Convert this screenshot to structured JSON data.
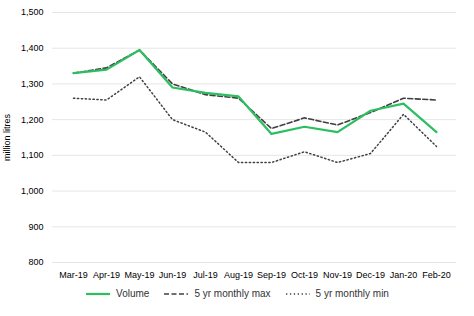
{
  "chart_data": {
    "type": "line",
    "categories": [
      "Mar-19",
      "Apr-19",
      "May-19",
      "Jun-19",
      "Jul-19",
      "Aug-19",
      "Sep-19",
      "Oct-19",
      "Nov-19",
      "Dec-19",
      "Jan-20",
      "Feb-20"
    ],
    "series": [
      {
        "name": "5 yr monthly min",
        "color": "#404040",
        "line_style": "dotted",
        "values": [
          1260,
          1255,
          1320,
          1200,
          1165,
          1080,
          1080,
          1110,
          1080,
          1105,
          1215,
          1125
        ]
      },
      {
        "name": "5 yr monthly max",
        "color": "#404040",
        "line_style": "dashed",
        "values": [
          1330,
          1345,
          1395,
          1300,
          1270,
          1260,
          1175,
          1205,
          1185,
          1220,
          1260,
          1255
        ]
      },
      {
        "name": "Volume",
        "color": "#2dbe60",
        "line_style": "solid",
        "values": [
          1330,
          1340,
          1395,
          1290,
          1275,
          1265,
          1160,
          1180,
          1165,
          1225,
          1245,
          1165
        ]
      }
    ],
    "ylabel": "million litres",
    "ylim": [
      800,
      1500
    ],
    "yticks": [
      800,
      900,
      {
        "value": 1000,
        "label": "1,000"
      },
      {
        "value": 1100,
        "label": "1,100"
      },
      {
        "value": 1200,
        "label": "1,200"
      },
      {
        "value": 1300,
        "label": "1,300"
      },
      {
        "value": 1400,
        "label": "1,400"
      },
      {
        "value": 1500,
        "label": "1,500"
      }
    ],
    "grid": true,
    "legend": "bottom"
  }
}
